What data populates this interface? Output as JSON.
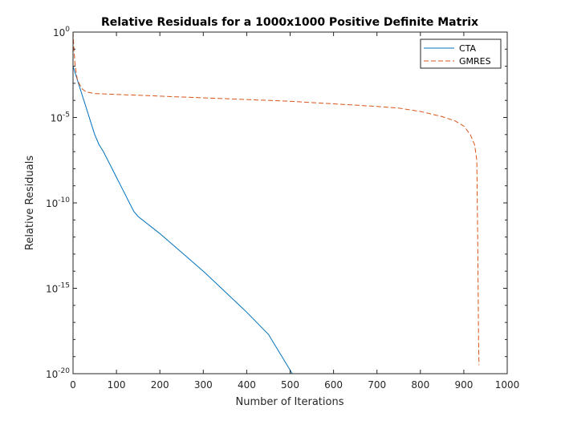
{
  "chart_data": {
    "type": "line",
    "title": "Relative Residuals for a 1000x1000 Positive Definite Matrix",
    "xlabel": "Number of Iterations",
    "ylabel": "Relative Residuals",
    "xlim": [
      0,
      1000
    ],
    "ylim": [
      1e-20,
      1
    ],
    "yscale": "log",
    "x_ticks": [
      0,
      100,
      200,
      300,
      400,
      500,
      600,
      700,
      800,
      900,
      1000
    ],
    "x_tick_labels": [
      "0",
      "100",
      "200",
      "300",
      "400",
      "500",
      "600",
      "700",
      "800",
      "900",
      "1000"
    ],
    "y_ticks": [
      -20,
      -15,
      -10,
      -5,
      0
    ],
    "y_tick_labels": [
      {
        "base": "10",
        "exp": "-20"
      },
      {
        "base": "10",
        "exp": "-15"
      },
      {
        "base": "10",
        "exp": "-10"
      },
      {
        "base": "10",
        "exp": "-5"
      },
      {
        "base": "10",
        "exp": "0"
      }
    ],
    "grid": false,
    "legend_position": "top-right",
    "series": [
      {
        "name": "CTA",
        "color": "#0072bd",
        "line_style": "solid",
        "x": [
          0,
          10,
          20,
          30,
          40,
          50,
          60,
          70,
          80,
          90,
          100,
          110,
          120,
          130,
          140,
          150,
          160,
          170,
          180,
          200,
          250,
          300,
          350,
          400,
          450,
          505
        ],
        "log10_y": [
          -2.0,
          -2.8,
          -3.6,
          -4.4,
          -5.2,
          -6.0,
          -6.6,
          -7.0,
          -7.5,
          -8.0,
          -8.5,
          -9.0,
          -9.5,
          -10.0,
          -10.5,
          -10.8,
          -11.0,
          -11.2,
          -11.4,
          -11.8,
          -12.9,
          -14.0,
          -15.2,
          -16.4,
          -17.7,
          -20.0
        ]
      },
      {
        "name": "GMRES",
        "color": "#d95319",
        "line_style": "dashed",
        "x": [
          0,
          2,
          5,
          10,
          20,
          30,
          50,
          100,
          200,
          300,
          400,
          500,
          600,
          700,
          750,
          800,
          850,
          880,
          900,
          915,
          925,
          930,
          932,
          934,
          935
        ],
        "log10_y": [
          0,
          -1.0,
          -2.0,
          -2.8,
          -3.3,
          -3.5,
          -3.6,
          -3.65,
          -3.75,
          -3.85,
          -3.95,
          -4.05,
          -4.2,
          -4.35,
          -4.45,
          -4.65,
          -4.95,
          -5.2,
          -5.5,
          -6.0,
          -6.6,
          -7.5,
          -12.0,
          -18.0,
          -19.5
        ]
      }
    ]
  }
}
